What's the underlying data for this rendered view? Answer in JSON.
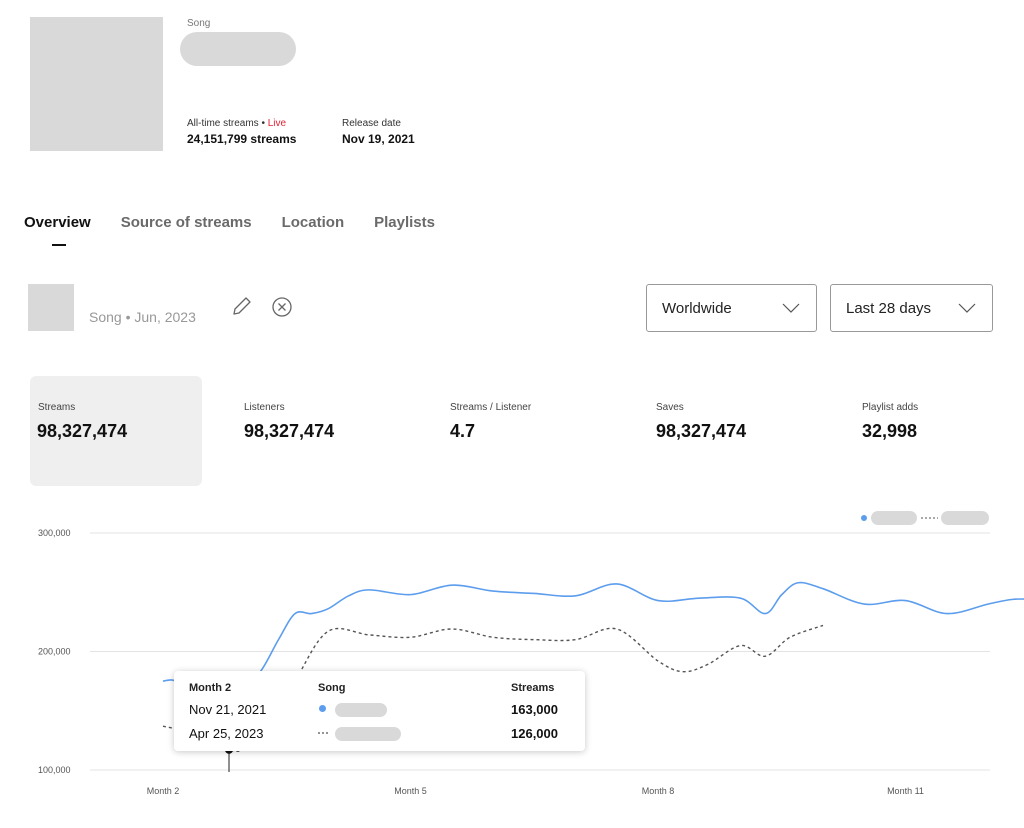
{
  "header": {
    "type_label": "Song",
    "alltime_label": "All-time streams • ",
    "live_label": "Live",
    "alltime_value": "24,151,799 streams",
    "release_label": "Release date",
    "release_value": "Nov 19, 2021"
  },
  "tabs": [
    {
      "label": "Overview",
      "active": true
    },
    {
      "label": "Source of streams",
      "active": false
    },
    {
      "label": "Location",
      "active": false
    },
    {
      "label": "Playlists",
      "active": false
    }
  ],
  "compare": {
    "label": "Song • Jun, 2023",
    "edit_icon": "pencil-icon",
    "remove_icon": "close-circle-icon"
  },
  "filters": {
    "location": "Worldwide",
    "range": "Last 28 days"
  },
  "kpis": [
    {
      "label": "Streams",
      "value": "98,327,474"
    },
    {
      "label": "Listeners",
      "value": "98,327,474"
    },
    {
      "label": "Streams / Listener",
      "value": "4.7"
    },
    {
      "label": "Saves",
      "value": "98,327,474"
    },
    {
      "label": "Playlist adds",
      "value": "32,998"
    }
  ],
  "chart_data": {
    "type": "line",
    "y_ticks": [
      "300,000",
      "200,000",
      "100,000"
    ],
    "ylim": [
      100000,
      300000
    ],
    "x_ticks": [
      "Month 2",
      "Month 5",
      "Month 8",
      "Month 11"
    ],
    "grid": true,
    "legend_position": "top-right",
    "colors": {
      "primary": "#5c9ded",
      "comparison": "#555555"
    },
    "series": [
      {
        "style": "solid",
        "x": [
          0,
          0.1,
          0.2,
          0.3,
          0.45,
          0.6,
          0.8,
          1,
          1.2,
          1.4,
          1.6,
          1.8,
          2.0,
          2.25,
          2.5,
          3,
          3.5,
          4,
          4.5,
          5,
          5.5,
          6,
          6.5,
          7,
          7.3,
          7.5,
          7.7,
          8,
          8.5,
          9,
          9.5,
          10,
          10.3,
          10.6,
          11,
          11.5
        ],
        "values": [
          175000,
          176000,
          174000,
          170000,
          165000,
          160000,
          163000,
          170000,
          185000,
          210000,
          232000,
          232000,
          236000,
          247000,
          252000,
          248000,
          256000,
          251000,
          249000,
          247000,
          257000,
          243000,
          245000,
          245000,
          232000,
          248000,
          258000,
          253000,
          240000,
          243000,
          232000,
          240000,
          244000,
          244000,
          243000,
          240000
        ]
      },
      {
        "style": "dashed",
        "x": [
          0,
          0.3,
          0.6,
          0.8,
          1,
          1.3,
          1.6,
          2,
          2.5,
          3,
          3.5,
          4,
          4.5,
          5,
          5.5,
          6,
          6.3,
          6.6,
          7,
          7.3,
          7.6,
          8
        ],
        "values": [
          137000,
          132000,
          122000,
          117000,
          118000,
          140000,
          175000,
          217000,
          214000,
          212000,
          219000,
          212000,
          210000,
          210000,
          219000,
          192000,
          183000,
          189000,
          205000,
          196000,
          212000,
          222000
        ]
      }
    ]
  },
  "tooltip": {
    "month": "Month 2",
    "song_header": "Song",
    "streams_header": "Streams",
    "rows": [
      {
        "date": "Nov 21, 2021",
        "value": "163,000"
      },
      {
        "date": "Apr 25, 2023",
        "value": "126,000"
      }
    ]
  }
}
